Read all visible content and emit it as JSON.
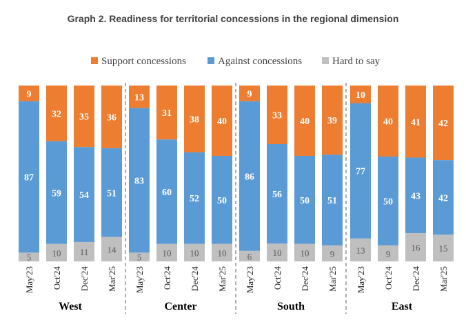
{
  "chart_data": {
    "type": "bar",
    "stacked": true,
    "title": "Graph 2. Readiness for territorial concessions in the regional dimension",
    "legend_position": "top",
    "colors": {
      "Support concessions": "#ed7d31",
      "Against concessions": "#5b9bd5",
      "Hard to say": "#bfbfbf"
    },
    "groups": [
      {
        "name": "West",
        "categories": [
          "May'23",
          "Oct'24",
          "Dec'24",
          "Mar'25"
        ],
        "series": [
          {
            "name": "Support concessions",
            "values": [
              9,
              32,
              35,
              36
            ]
          },
          {
            "name": "Against concessions",
            "values": [
              87,
              59,
              54,
              51
            ]
          },
          {
            "name": "Hard to say",
            "values": [
              5,
              10,
              11,
              14
            ]
          }
        ]
      },
      {
        "name": "Center",
        "categories": [
          "May'23",
          "Oct'24",
          "Dec'24",
          "Mar'25"
        ],
        "series": [
          {
            "name": "Support concessions",
            "values": [
              13,
              31,
              38,
              40
            ]
          },
          {
            "name": "Against concessions",
            "values": [
              83,
              60,
              52,
              50
            ]
          },
          {
            "name": "Hard to say",
            "values": [
              5,
              10,
              10,
              10
            ]
          }
        ]
      },
      {
        "name": "South",
        "categories": [
          "May'23",
          "Oct'24",
          "Dec'24",
          "Mar'25"
        ],
        "series": [
          {
            "name": "Support concessions",
            "values": [
              9,
              33,
              40,
              39
            ]
          },
          {
            "name": "Against concessions",
            "values": [
              86,
              56,
              50,
              51
            ]
          },
          {
            "name": "Hard to say",
            "values": [
              6,
              10,
              10,
              9
            ]
          }
        ]
      },
      {
        "name": "East",
        "categories": [
          "May'23",
          "Oct'24",
          "Dec'24",
          "Mar'25"
        ],
        "series": [
          {
            "name": "Support concessions",
            "values": [
              10,
              40,
              41,
              42
            ]
          },
          {
            "name": "Against concessions",
            "values": [
              77,
              50,
              43,
              42
            ]
          },
          {
            "name": "Hard to say",
            "values": [
              13,
              9,
              16,
              15
            ]
          }
        ]
      }
    ]
  }
}
